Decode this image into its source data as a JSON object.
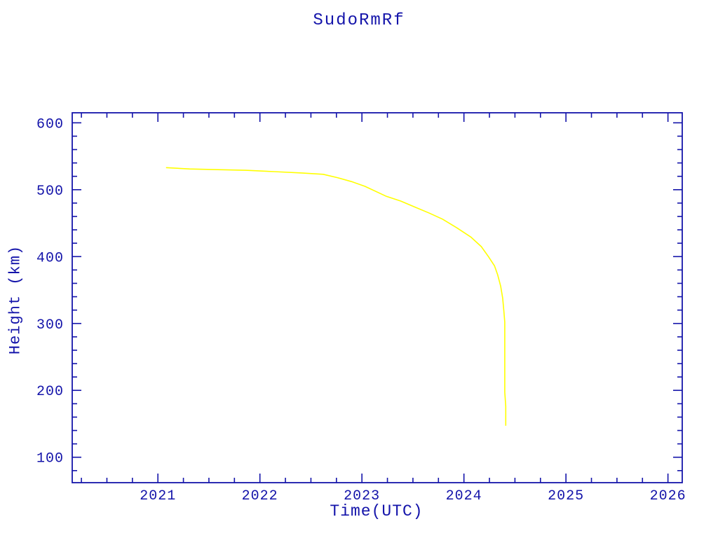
{
  "colors": {
    "axis": "#1414aa",
    "text": "#1414aa",
    "curve": "#ffff00",
    "background": "#ffffff"
  },
  "chart_data": {
    "type": "line",
    "title": "SudoRmRf",
    "xlabel": "Time(UTC)",
    "ylabel": "Height (km)",
    "xlim": [
      2020.16,
      2026.14
    ],
    "ylim": [
      62,
      615
    ],
    "x_major_ticks": [
      2021,
      2022,
      2023,
      2024,
      2025,
      2026
    ],
    "x_minor_step": 0.25,
    "y_major_ticks": [
      100,
      200,
      300,
      400,
      500,
      600
    ],
    "y_minor_step": 20,
    "grid": false,
    "legend": false,
    "series": [
      {
        "name": "height",
        "color": "#ffff00",
        "points": [
          [
            2021.08,
            533
          ],
          [
            2021.31,
            531
          ],
          [
            2021.59,
            530
          ],
          [
            2021.86,
            529
          ],
          [
            2022.14,
            527
          ],
          [
            2022.41,
            525
          ],
          [
            2022.62,
            523
          ],
          [
            2022.76,
            518
          ],
          [
            2022.9,
            512
          ],
          [
            2023.03,
            505
          ],
          [
            2023.24,
            490
          ],
          [
            2023.38,
            483
          ],
          [
            2023.52,
            474
          ],
          [
            2023.66,
            465
          ],
          [
            2023.79,
            456
          ],
          [
            2023.93,
            443
          ],
          [
            2024.07,
            429
          ],
          [
            2024.17,
            415
          ],
          [
            2024.24,
            400
          ],
          [
            2024.3,
            386
          ],
          [
            2024.33,
            373
          ],
          [
            2024.36,
            356
          ],
          [
            2024.38,
            338
          ],
          [
            2024.39,
            321
          ],
          [
            2024.4,
            302
          ],
          [
            2024.4,
            281
          ],
          [
            2024.4,
            260
          ],
          [
            2024.4,
            229
          ],
          [
            2024.4,
            197
          ],
          [
            2024.41,
            176
          ],
          [
            2024.41,
            147
          ]
        ]
      }
    ]
  }
}
